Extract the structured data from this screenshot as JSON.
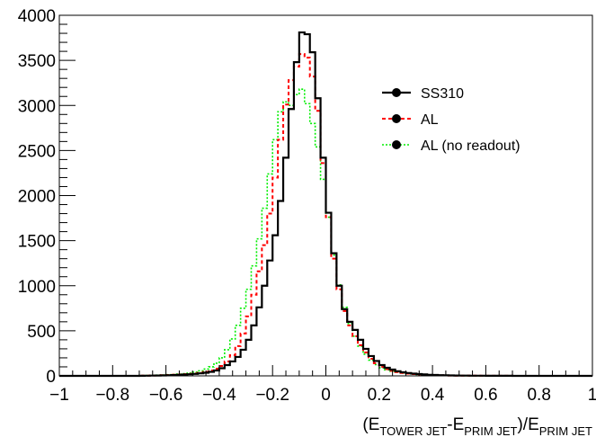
{
  "chart_data": {
    "type": "histogram",
    "title": "",
    "xlabel": {
      "parts": [
        {
          "text": "(E",
          "sub": false
        },
        {
          "text": "TOWER JET",
          "sub": true
        },
        {
          "text": "-E",
          "sub": false
        },
        {
          "text": "PRIM JET",
          "sub": true
        },
        {
          "text": ")/E",
          "sub": false
        },
        {
          "text": "PRIM JET",
          "sub": true
        }
      ]
    },
    "ylabel": "",
    "xlim": [
      -1,
      1
    ],
    "ylim": [
      0,
      4000
    ],
    "x_ticks": [
      -1,
      -0.8,
      -0.6,
      -0.4,
      -0.2,
      0,
      0.2,
      0.4,
      0.6,
      0.8,
      1
    ],
    "x_tick_labels": [
      "−1",
      "−0.8",
      "−0.6",
      "−0.4",
      "−0.2",
      "0",
      "0.2",
      "0.4",
      "0.6",
      "0.8",
      "1"
    ],
    "y_ticks": [
      0,
      500,
      1000,
      1500,
      2000,
      2500,
      3000,
      3500,
      4000
    ],
    "y_tick_labels": [
      "0",
      "500",
      "1000",
      "1500",
      "2000",
      "2500",
      "3000",
      "3500",
      "4000"
    ],
    "bin_width": 0.02,
    "bin_centers": [
      -0.69,
      -0.67,
      -0.65,
      -0.63,
      -0.61,
      -0.59,
      -0.57,
      -0.55,
      -0.53,
      -0.51,
      -0.49,
      -0.47,
      -0.45,
      -0.43,
      -0.41,
      -0.39,
      -0.37,
      -0.35,
      -0.33,
      -0.31,
      -0.29,
      -0.27,
      -0.25,
      -0.23,
      -0.21,
      -0.19,
      -0.17,
      -0.15,
      -0.13,
      -0.11,
      -0.09,
      -0.07,
      -0.05,
      -0.03,
      -0.01,
      0.01,
      0.03,
      0.05,
      0.07,
      0.09,
      0.11,
      0.13,
      0.15,
      0.17,
      0.19,
      0.21,
      0.23,
      0.25,
      0.27,
      0.29,
      0.31,
      0.33,
      0.35,
      0.37,
      0.39,
      0.41,
      0.43,
      0.45,
      0.47,
      0.49,
      0.51,
      0.53,
      0.55,
      0.57,
      0.59,
      0.61,
      0.63,
      0.65,
      0.67,
      0.69
    ],
    "series": [
      {
        "name": "SS310",
        "color": "#000000",
        "dash": "solid",
        "values": [
          1,
          2,
          3,
          4,
          5,
          7,
          9,
          12,
          15,
          18,
          22,
          28,
          35,
          45,
          60,
          85,
          120,
          160,
          210,
          290,
          400,
          560,
          760,
          1000,
          1280,
          1560,
          1940,
          2420,
          2960,
          3480,
          3810,
          3790,
          3590,
          3080,
          2420,
          1810,
          1360,
          1000,
          740,
          600,
          510,
          400,
          300,
          220,
          165,
          120,
          90,
          70,
          52,
          40,
          32,
          25,
          20,
          16,
          12,
          10,
          8,
          6,
          5,
          4,
          3,
          3,
          2,
          2,
          2,
          1,
          1,
          1,
          1,
          1
        ]
      },
      {
        "name": "AL",
        "color": "#ff0000",
        "dash": "dashed",
        "values": [
          2,
          3,
          4,
          5,
          7,
          9,
          12,
          15,
          19,
          23,
          28,
          35,
          45,
          60,
          80,
          110,
          160,
          230,
          330,
          470,
          660,
          900,
          1160,
          1450,
          1800,
          2200,
          2620,
          3010,
          3280,
          3430,
          3570,
          3530,
          3320,
          2940,
          2360,
          1760,
          1300,
          960,
          720,
          560,
          440,
          340,
          260,
          190,
          140,
          100,
          75,
          56,
          42,
          32,
          25,
          20,
          16,
          12,
          10,
          8,
          6,
          5,
          4,
          3,
          3,
          2,
          2,
          2,
          1,
          1,
          1,
          1,
          1,
          1
        ]
      },
      {
        "name": "AL (no readout)",
        "color": "#00ee00",
        "dash": "dotted",
        "values": [
          3,
          4,
          6,
          8,
          10,
          13,
          16,
          20,
          25,
          32,
          42,
          56,
          75,
          100,
          140,
          200,
          290,
          410,
          560,
          750,
          960,
          1220,
          1520,
          1860,
          2240,
          2620,
          2930,
          3040,
          3000,
          3120,
          3180,
          3020,
          2800,
          2540,
          2180,
          1760,
          1340,
          1010,
          760,
          580,
          440,
          330,
          240,
          175,
          125,
          90,
          68,
          52,
          40,
          31,
          24,
          19,
          15,
          12,
          9,
          7,
          6,
          5,
          4,
          3,
          3,
          2,
          2,
          2,
          1,
          1,
          1,
          1,
          1,
          1
        ]
      }
    ],
    "legend_position": "top-right",
    "grid": false
  }
}
